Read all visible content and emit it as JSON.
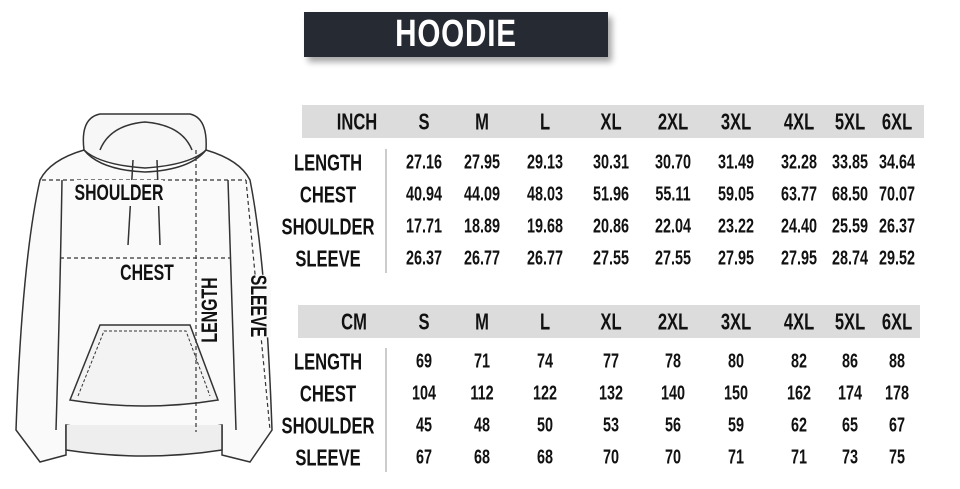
{
  "title": "HOODIE",
  "diagram_labels": {
    "shoulder": "SHOULDER",
    "chest": "CHEST",
    "length": "LENGTH",
    "sleeve": "SLEEVE"
  },
  "sizes": [
    "S",
    "M",
    "L",
    "XL",
    "2XL",
    "3XL",
    "4XL",
    "5XL",
    "6XL"
  ],
  "tables": [
    {
      "unit": "INCH",
      "rows": [
        {
          "label": "LENGTH",
          "values": [
            "27.16",
            "27.95",
            "29.13",
            "30.31",
            "30.70",
            "31.49",
            "32.28",
            "33.85",
            "34.64"
          ]
        },
        {
          "label": "CHEST",
          "values": [
            "40.94",
            "44.09",
            "48.03",
            "51.96",
            "55.11",
            "59.05",
            "63.77",
            "68.50",
            "70.07"
          ]
        },
        {
          "label": "SHOULDER",
          "values": [
            "17.71",
            "18.89",
            "19.68",
            "20.86",
            "22.04",
            "23.22",
            "24.40",
            "25.59",
            "26.37"
          ]
        },
        {
          "label": "SLEEVE",
          "values": [
            "26.37",
            "26.77",
            "26.77",
            "27.55",
            "27.55",
            "27.95",
            "27.95",
            "28.74",
            "29.52"
          ]
        }
      ]
    },
    {
      "unit": "CM",
      "rows": [
        {
          "label": "LENGTH",
          "values": [
            "69",
            "71",
            "74",
            "77",
            "78",
            "80",
            "82",
            "86",
            "88"
          ]
        },
        {
          "label": "CHEST",
          "values": [
            "104",
            "112",
            "122",
            "132",
            "140",
            "150",
            "162",
            "174",
            "178"
          ]
        },
        {
          "label": "SHOULDER",
          "values": [
            "45",
            "48",
            "50",
            "53",
            "56",
            "59",
            "62",
            "65",
            "67"
          ]
        },
        {
          "label": "SLEEVE",
          "values": [
            "67",
            "68",
            "68",
            "70",
            "70",
            "71",
            "71",
            "73",
            "75"
          ]
        }
      ]
    }
  ],
  "colors": {
    "title_bg": "#252a33",
    "header_band": "#dcdcdc",
    "text": "#111111"
  }
}
